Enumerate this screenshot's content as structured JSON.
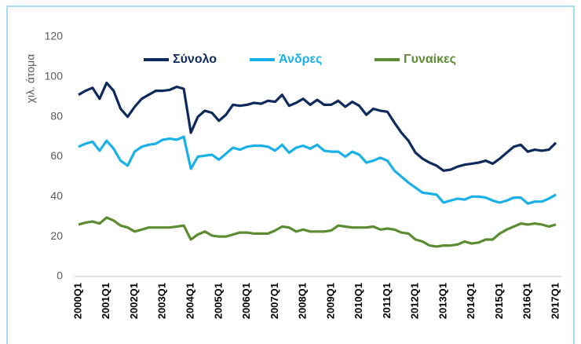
{
  "chart_data": {
    "type": "line",
    "ylabel": "χιλ. άτομα",
    "categories": [
      "2000Q1",
      null,
      null,
      null,
      "2001Q1",
      null,
      null,
      null,
      "2002Q1",
      null,
      null,
      null,
      "2003Q1",
      null,
      null,
      null,
      "2004Q1",
      null,
      null,
      null,
      "2005Q1",
      null,
      null,
      null,
      "2006Q1",
      null,
      null,
      null,
      "2007Q1",
      null,
      null,
      null,
      "2008Q1",
      null,
      null,
      null,
      "2009Q1",
      null,
      null,
      null,
      "2010Q1",
      null,
      null,
      null,
      "2011Q1",
      null,
      null,
      null,
      "2012Q1",
      null,
      null,
      null,
      "2013Q1",
      null,
      null,
      null,
      "2014Q1",
      null,
      null,
      null,
      "2015Q1",
      null,
      null,
      null,
      "2016Q1",
      null,
      null,
      null,
      "2017Q1"
    ],
    "series": [
      {
        "name": "Σύνολο",
        "color": "#0e2a5c",
        "values": [
          91,
          93,
          94.5,
          89,
          97,
          93,
          84,
          80,
          85,
          89,
          91,
          93,
          93,
          93.5,
          95,
          94,
          72,
          80,
          83,
          82,
          78,
          81,
          86,
          85.5,
          86,
          87,
          86.5,
          88,
          87.5,
          91,
          85.5,
          87,
          89,
          86,
          88.5,
          86,
          86,
          88,
          85,
          87.5,
          85.5,
          81,
          84,
          83,
          82.5,
          77,
          72,
          68,
          62,
          59,
          57,
          55.5,
          53,
          53.5,
          55,
          56,
          56.5,
          57,
          58,
          56.5,
          59,
          62,
          65,
          66,
          62.5,
          63.5,
          63,
          63.5,
          67
        ]
      },
      {
        "name": "Άνδρες",
        "color": "#1ab0e8",
        "values": [
          65,
          66.5,
          67.5,
          63,
          68,
          64,
          58,
          55.5,
          62.5,
          65,
          66,
          66.5,
          68.5,
          69,
          68.5,
          70,
          54,
          60,
          60.5,
          61,
          58.5,
          61.5,
          64.5,
          63.5,
          65,
          65.5,
          65.5,
          65,
          63,
          66,
          62,
          64.5,
          65.5,
          64,
          66,
          63,
          62.5,
          62.5,
          60,
          62.5,
          61,
          57,
          58,
          59.5,
          58,
          53,
          50,
          47,
          44.5,
          42,
          41.5,
          41,
          37,
          38,
          39,
          38.5,
          40,
          40,
          39.5,
          38,
          37,
          38,
          39.5,
          39.5,
          36.5,
          37.5,
          37.5,
          39,
          41
        ]
      },
      {
        "name": "Γυναίκες",
        "color": "#5b8c32",
        "values": [
          26,
          27,
          27.5,
          26.5,
          29.5,
          28,
          25.5,
          24.5,
          22.5,
          23.5,
          24.5,
          24.5,
          24.5,
          24.5,
          25,
          25.5,
          18.5,
          21,
          22.5,
          20.5,
          20,
          20,
          21,
          22,
          22,
          21.5,
          21.5,
          21.5,
          23,
          25,
          24.5,
          22.5,
          23.5,
          22.5,
          22.5,
          22.5,
          23,
          25.5,
          25,
          24.5,
          24.5,
          24.5,
          25,
          23.5,
          24,
          23.5,
          22,
          21.5,
          18.5,
          17.5,
          15.5,
          15,
          15.5,
          15.5,
          16,
          17.5,
          16.5,
          17,
          18.5,
          18.5,
          21.5,
          23.5,
          25,
          26.5,
          26,
          26.5,
          26,
          25,
          26
        ]
      }
    ],
    "ylim": [
      0,
      120
    ],
    "yticks": [
      0,
      20,
      40,
      60,
      80,
      100,
      120
    ],
    "grid": false,
    "legend": "top"
  }
}
